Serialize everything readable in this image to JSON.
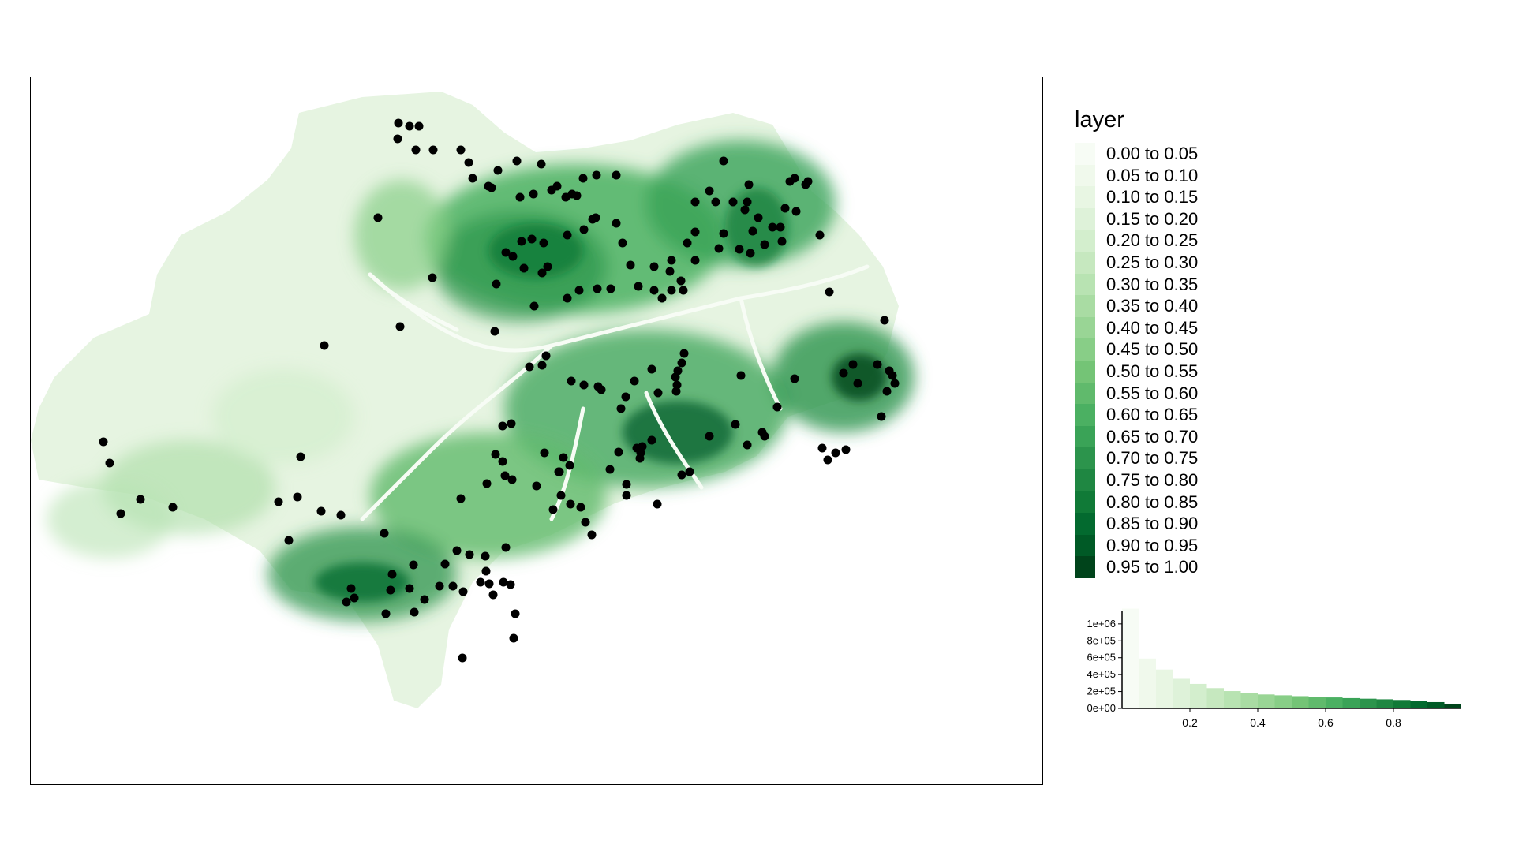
{
  "legend": {
    "title": "layer",
    "items": [
      {
        "label": "0.00 to 0.05",
        "color": "#f7fcf5"
      },
      {
        "label": "0.05 to 0.10",
        "color": "#f0f9ec"
      },
      {
        "label": "0.10 to 0.15",
        "color": "#e8f6e3"
      },
      {
        "label": "0.15 to 0.20",
        "color": "#def2d9"
      },
      {
        "label": "0.20 to 0.25",
        "color": "#d3eecd"
      },
      {
        "label": "0.25 to 0.30",
        "color": "#c6e8bf"
      },
      {
        "label": "0.30 to 0.35",
        "color": "#b8e3b2"
      },
      {
        "label": "0.35 to 0.40",
        "color": "#a9dca3"
      },
      {
        "label": "0.40 to 0.45",
        "color": "#99d595"
      },
      {
        "label": "0.45 to 0.50",
        "color": "#88ce87"
      },
      {
        "label": "0.50 to 0.55",
        "color": "#74c476"
      },
      {
        "label": "0.55 to 0.60",
        "color": "#60ba6c"
      },
      {
        "label": "0.60 to 0.65",
        "color": "#4bb062"
      },
      {
        "label": "0.65 to 0.70",
        "color": "#3aa357"
      },
      {
        "label": "0.70 to 0.75",
        "color": "#2c944c"
      },
      {
        "label": "0.75 to 0.80",
        "color": "#1f8742"
      },
      {
        "label": "0.80 to 0.85",
        "color": "#107a37"
      },
      {
        "label": "0.85 to 0.90",
        "color": "#036a2f"
      },
      {
        "label": "0.90 to 0.95",
        "color": "#005a26"
      },
      {
        "label": "0.95 to 1.00",
        "color": "#00441b"
      }
    ]
  },
  "chart_data": {
    "type": "bar",
    "x_tick_labels": [
      "0.2",
      "0.4",
      "0.6",
      "0.8"
    ],
    "x_ticks": [
      0.2,
      0.4,
      0.6,
      0.8
    ],
    "y_tick_labels": [
      "0e+00",
      "2e+05",
      "4e+05",
      "6e+05",
      "8e+05",
      "1e+06"
    ],
    "y_ticks": [
      0,
      200000,
      400000,
      600000,
      800000,
      1000000
    ],
    "xlim": [
      0,
      1
    ],
    "ylim": [
      0,
      1120000
    ],
    "bins": [
      0.0,
      0.05,
      0.1,
      0.15,
      0.2,
      0.25,
      0.3,
      0.35,
      0.4,
      0.45,
      0.5,
      0.55,
      0.6,
      0.65,
      0.7,
      0.75,
      0.8,
      0.85,
      0.9,
      0.95
    ],
    "values": [
      1180000,
      590000,
      460000,
      350000,
      290000,
      240000,
      205000,
      180000,
      165000,
      155000,
      145000,
      138000,
      130000,
      122000,
      115000,
      108000,
      100000,
      90000,
      75000,
      55000
    ]
  }
}
